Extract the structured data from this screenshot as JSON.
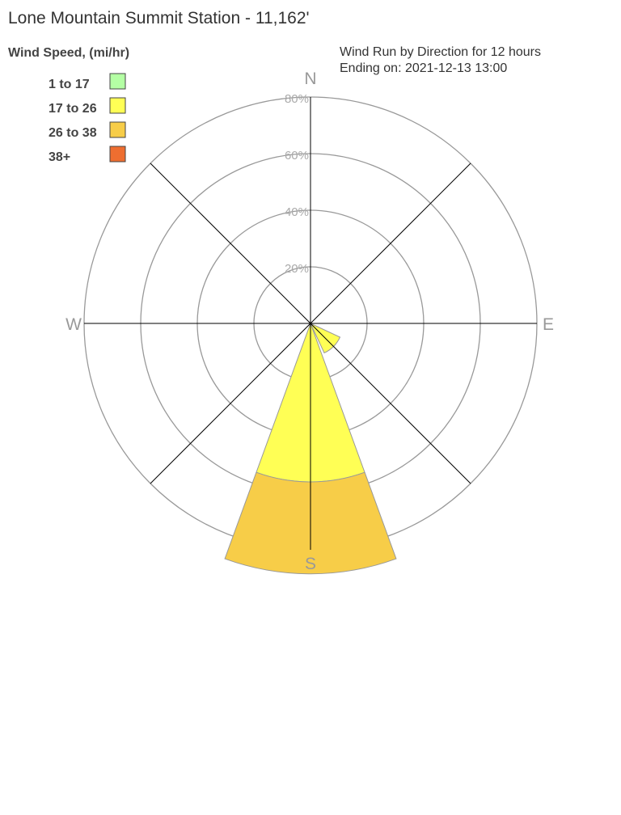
{
  "title": "Lone Mountain Summit Station - 11,162'",
  "legend": {
    "title": "Wind Speed, (mi/hr)",
    "entries": [
      {
        "label": "1 to 17",
        "color": "#b4ffa4"
      },
      {
        "label": "17 to 26",
        "color": "#ffff55"
      },
      {
        "label": "26 to 38",
        "color": "#f7cd48"
      },
      {
        "label": "38+",
        "color": "#ee6e30"
      }
    ]
  },
  "subtitle": [
    "Wind Run by Direction for 12 hours",
    "Ending on: 2021-12-13 13:00"
  ],
  "chart_data": {
    "type": "wind-rose",
    "title": "Lone Mountain Summit Station - 11,162'",
    "directions": [
      "N",
      "NE",
      "E",
      "SE",
      "S",
      "SW",
      "W",
      "NW"
    ],
    "compass_labels": [
      "N",
      "E",
      "S",
      "W"
    ],
    "rings": [
      "20%",
      "40%",
      "60%",
      "80%"
    ],
    "rlim": [
      0,
      80
    ],
    "series": [
      {
        "name": "1 to 17",
        "values": [
          0,
          0,
          0,
          0,
          0,
          0,
          0,
          0
        ]
      },
      {
        "name": "17 to 26",
        "values": [
          0,
          0,
          0,
          11.5,
          56,
          0,
          0,
          0
        ]
      },
      {
        "name": "26 to 38",
        "values": [
          0,
          0,
          0,
          0,
          32.5,
          0,
          0,
          0
        ]
      },
      {
        "name": "38+",
        "values": [
          0,
          0,
          0,
          0,
          0,
          0,
          0,
          0
        ]
      }
    ]
  }
}
